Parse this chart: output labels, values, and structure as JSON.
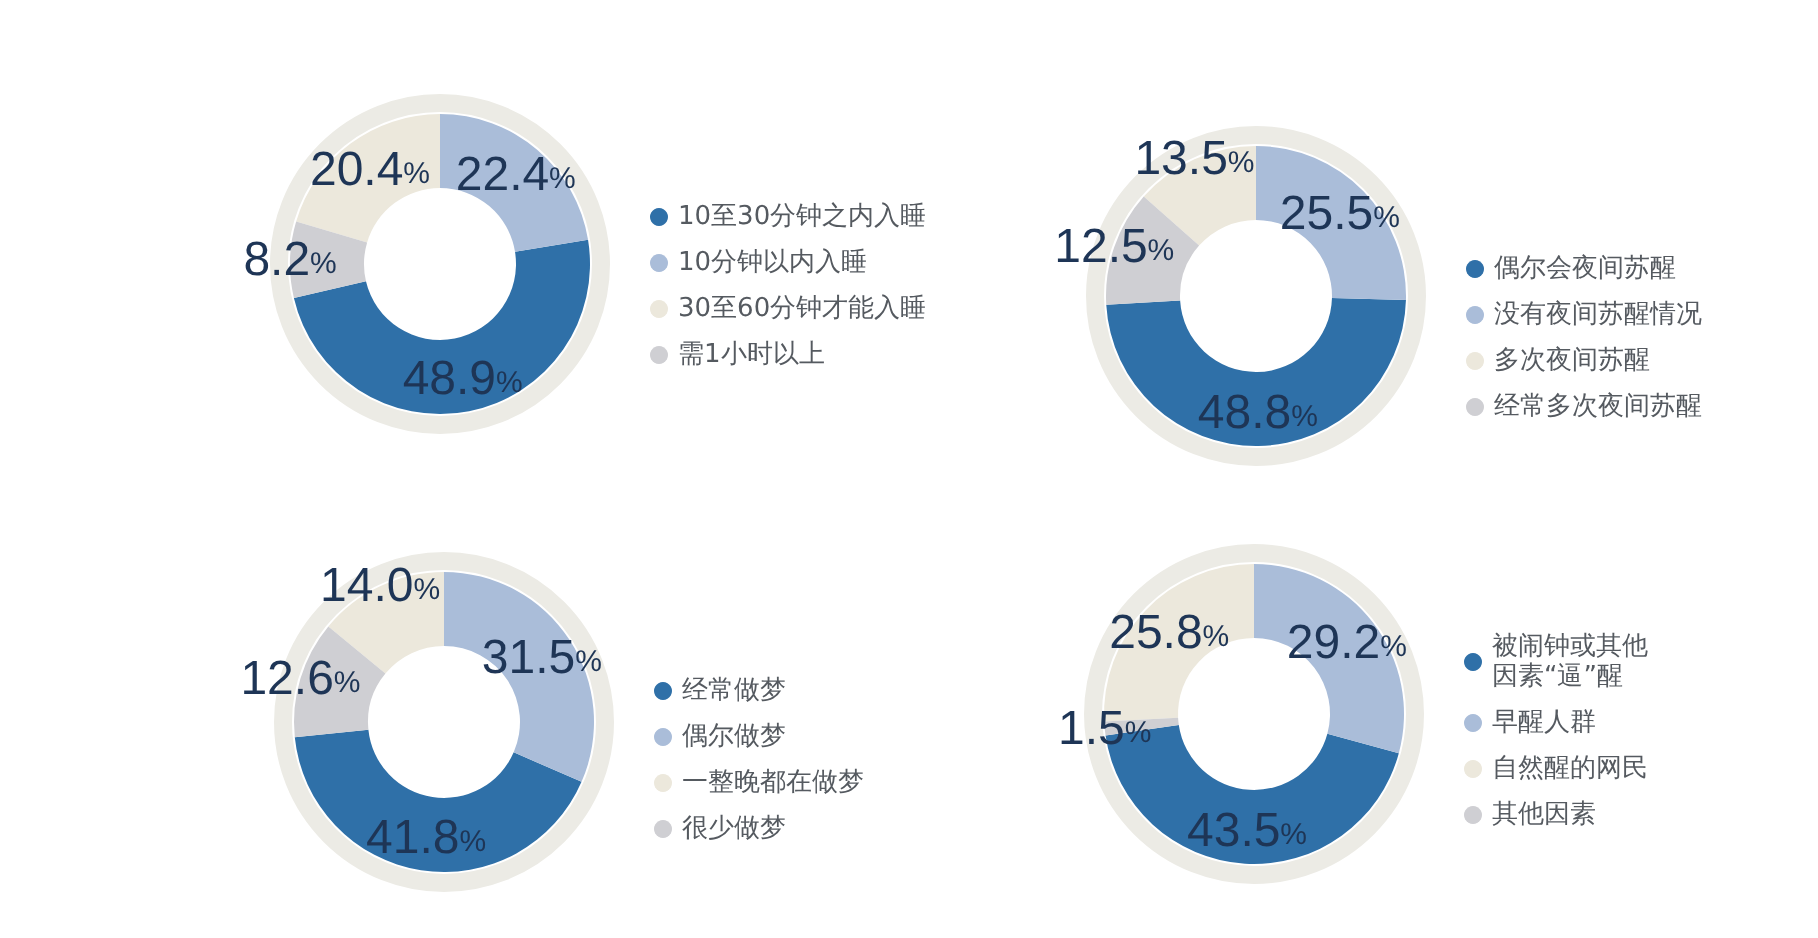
{
  "chart_data": [
    {
      "type": "donut",
      "categories": [
        "10至30分钟之内入睡",
        "10分钟以内入睡",
        "30至60分钟才能入睡",
        "需1小时以上"
      ],
      "values": [
        48.9,
        22.4,
        20.4,
        8.2
      ],
      "value_labels": [
        "48.9%",
        "22.4%",
        "20.4%",
        "8.2%"
      ],
      "colors": [
        "#2f70a8",
        "#aabdd9",
        "#ece8dc",
        "#cfcfd3"
      ],
      "legend": "right"
    },
    {
      "type": "donut",
      "categories": [
        "偶尔会夜间苏醒",
        "没有夜间苏醒情况",
        "多次夜间苏醒",
        "经常多次夜间苏醒"
      ],
      "values": [
        48.8,
        25.5,
        13.5,
        12.5
      ],
      "value_labels": [
        "48.8%",
        "25.5%",
        "13.5%",
        "12.5%"
      ],
      "colors": [
        "#2f70a8",
        "#aabdd9",
        "#ece8dc",
        "#cfcfd3"
      ],
      "legend": "right"
    },
    {
      "type": "donut",
      "categories": [
        "经常做梦",
        "偶尔做梦",
        "一整晚都在做梦",
        "很少做梦"
      ],
      "values": [
        41.8,
        31.5,
        14.0,
        12.6
      ],
      "value_labels": [
        "41.8%",
        "31.5%",
        "14.0%",
        "12.6%"
      ],
      "colors": [
        "#2f70a8",
        "#aabdd9",
        "#ece8dc",
        "#cfcfd3"
      ],
      "legend": "right"
    },
    {
      "type": "donut",
      "categories": [
        "被闹钟或其他因素“逼”醒",
        "早醒人群",
        "自然醒的网民",
        "其他因素"
      ],
      "values": [
        43.5,
        29.2,
        25.8,
        1.5
      ],
      "value_labels": [
        "43.5%",
        "29.2%",
        "25.8%",
        "1.5%"
      ],
      "colors": [
        "#2f70a8",
        "#aabdd9",
        "#ece8dc",
        "#cfcfd3"
      ],
      "legend": "right"
    }
  ]
}
